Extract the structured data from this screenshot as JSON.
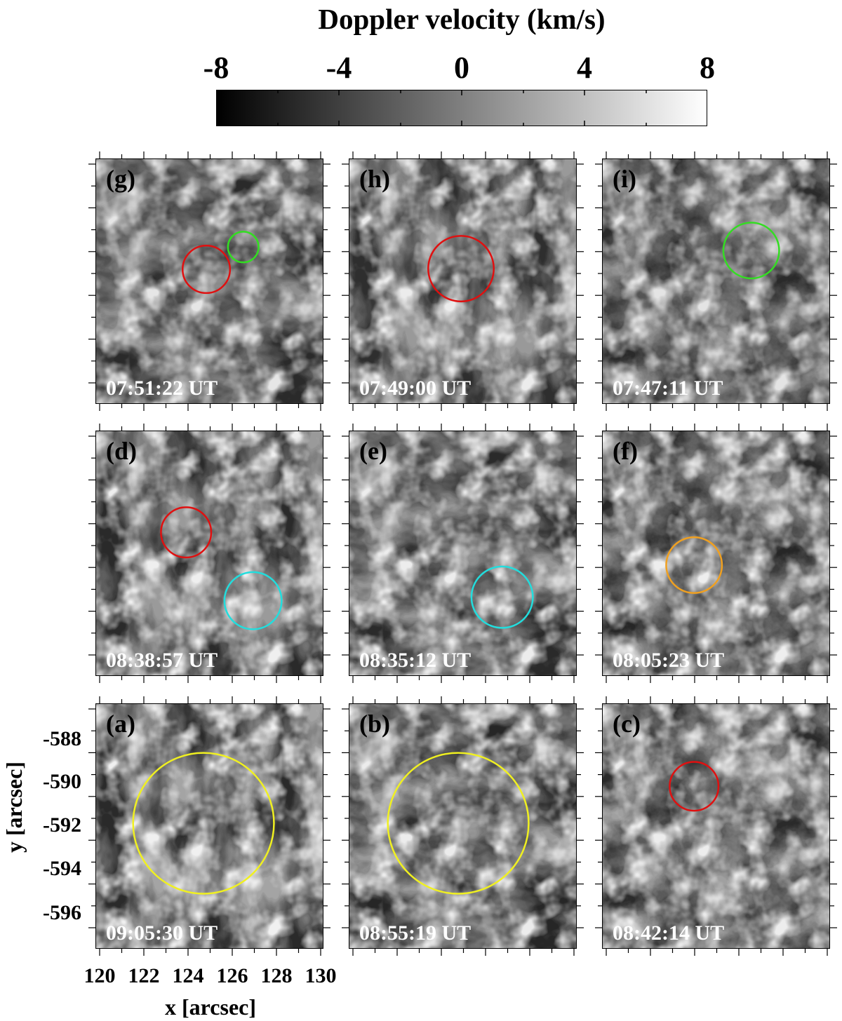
{
  "colorbar": {
    "title": "Doppler velocity (km/s)",
    "range": [
      -8,
      8
    ],
    "ticks": [
      "-8",
      "-4",
      "0",
      "4",
      "8"
    ],
    "colormap": "grayscale black-to-white"
  },
  "panels": [
    {
      "id": "g",
      "label": "(g)",
      "time": "07:51:22 UT",
      "circles": [
        {
          "color": "#e01010"
        },
        {
          "color": "#33dd22"
        }
      ]
    },
    {
      "id": "h",
      "label": "(h)",
      "time": "07:49:00 UT",
      "circles": [
        {
          "color": "#e01010"
        }
      ]
    },
    {
      "id": "i",
      "label": "(i)",
      "time": "07:47:11 UT",
      "circles": [
        {
          "color": "#33dd22"
        }
      ]
    },
    {
      "id": "d",
      "label": "(d)",
      "time": "08:38:57 UT",
      "circles": [
        {
          "color": "#e01010"
        },
        {
          "color": "#22dddd"
        }
      ]
    },
    {
      "id": "e",
      "label": "(e)",
      "time": "08:35:12 UT",
      "circles": [
        {
          "color": "#22dddd"
        }
      ]
    },
    {
      "id": "f",
      "label": "(f)",
      "time": "08:05:23 UT",
      "circles": [
        {
          "color": "#f0a020"
        }
      ]
    },
    {
      "id": "a",
      "label": "(a)",
      "time": "09:05:30 UT",
      "circles": [
        {
          "color": "#f0f020"
        }
      ]
    },
    {
      "id": "b",
      "label": "(b)",
      "time": "08:55:19 UT",
      "circles": [
        {
          "color": "#f0f020"
        }
      ]
    },
    {
      "id": "c",
      "label": "(c)",
      "time": "08:42:14 UT",
      "circles": [
        {
          "color": "#e01010"
        }
      ]
    }
  ],
  "axes": {
    "x_label": "x [arcsec]",
    "y_label": "y [arcsec]",
    "x_ticks": [
      "120",
      "122",
      "124",
      "126",
      "128",
      "130"
    ],
    "y_ticks": [
      "-588",
      "-590",
      "-592",
      "-594",
      "-596"
    ]
  }
}
